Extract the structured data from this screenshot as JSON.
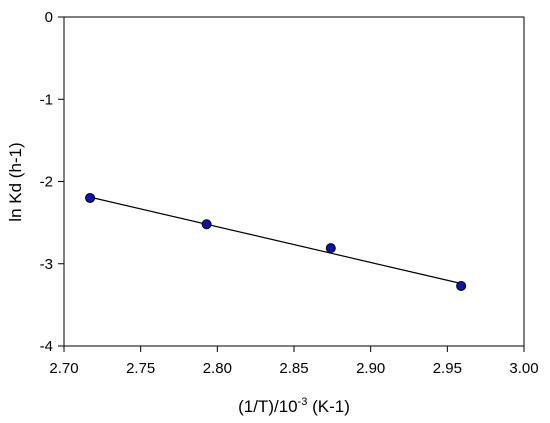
{
  "chart_data": {
    "type": "scatter",
    "title": "",
    "xlabel": {
      "main": "(1/T)/10",
      "superscript": "-3",
      "suffix": " (K-1)"
    },
    "ylabel": "ln Kd (h-1)",
    "xlim": [
      2.7,
      3.0
    ],
    "ylim": [
      -4,
      0
    ],
    "xticks": [
      "2.70",
      "2.75",
      "2.80",
      "2.85",
      "2.90",
      "2.95",
      "3.00"
    ],
    "yticks": [
      "0",
      "-1",
      "-2",
      "-3",
      "-4"
    ],
    "grid": false,
    "legend": "none",
    "series": [
      {
        "marker": "circle",
        "color": "#0a14b4",
        "points": [
          {
            "x": 2.717,
            "y": -2.2
          },
          {
            "x": 2.793,
            "y": -2.52
          },
          {
            "x": 2.874,
            "y": -2.81
          },
          {
            "x": 2.959,
            "y": -3.27
          }
        ]
      }
    ],
    "fit_line": {
      "color": "#000000",
      "points": [
        {
          "x": 2.717,
          "y": -2.19
        },
        {
          "x": 2.959,
          "y": -3.24
        }
      ]
    }
  }
}
